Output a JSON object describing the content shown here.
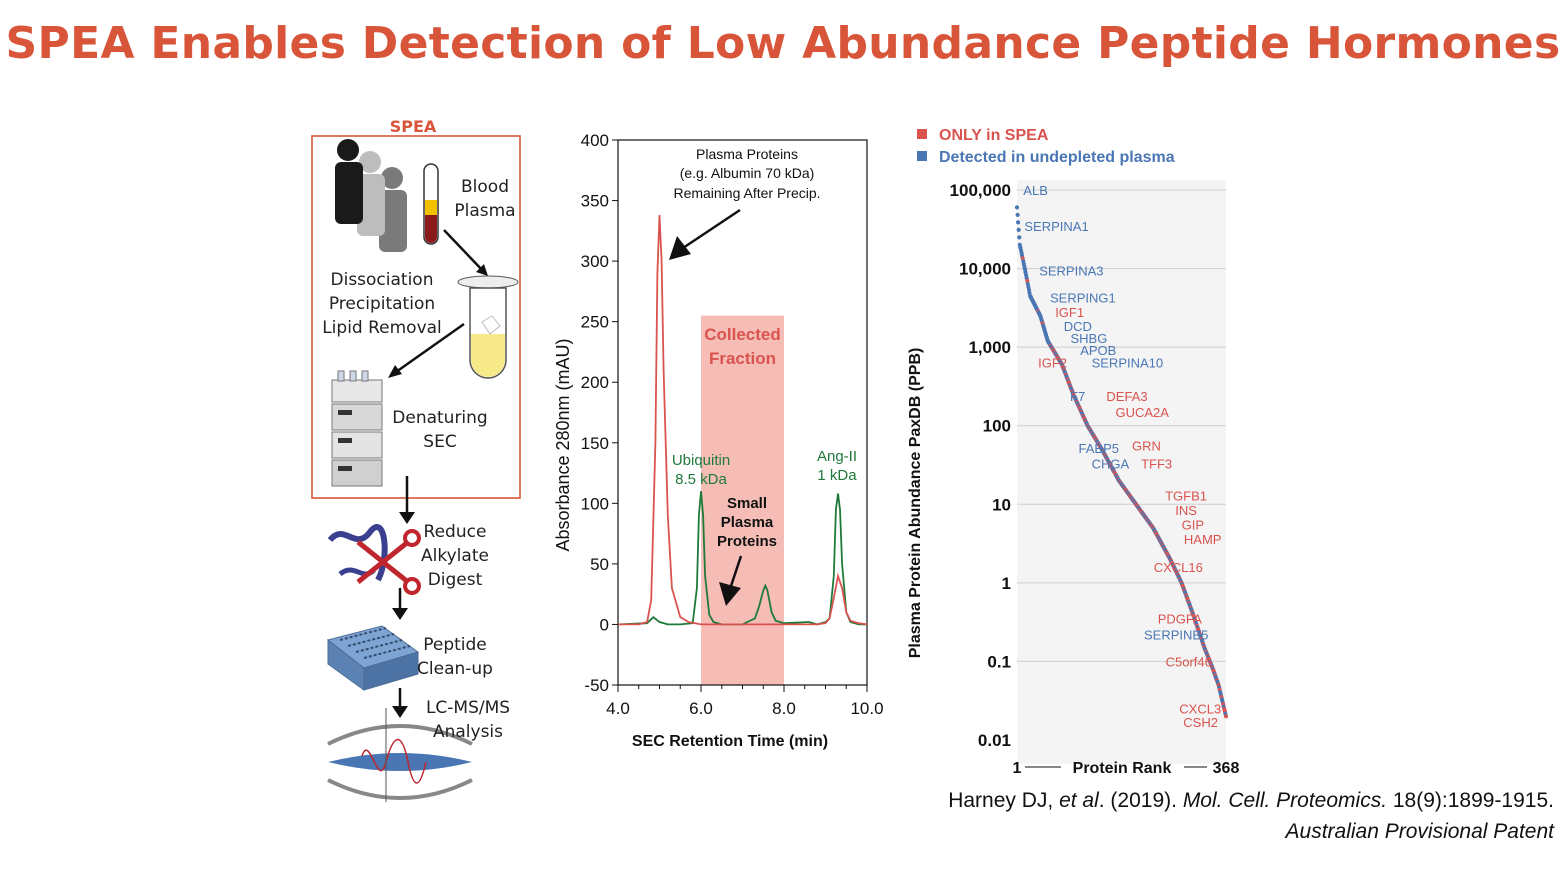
{
  "title": "SPEA Enables Detection of Low Abundance Peptide Hormones",
  "workflow": {
    "spea_label": "SPEA",
    "blood_label": [
      "Blood",
      "Plasma"
    ],
    "dissociation_label": [
      "Dissociation",
      "Precipitation",
      "Lipid Removal"
    ],
    "sec_label": [
      "Denaturing",
      "SEC"
    ],
    "reduce_label": [
      "Reduce",
      "Alkylate",
      "Digest"
    ],
    "cleanup_label": [
      "Peptide",
      "Clean-up"
    ],
    "lcms_label": [
      "LC-MS/MS",
      "Analysis"
    ]
  },
  "colors": {
    "accent": "#d9553a",
    "red_trace": "#d9534f",
    "green_trace": "#1f7a3a",
    "collected": "#f5bdb5",
    "only_spea": "#d9534f",
    "undepleted": "#4a77b4"
  },
  "chart_data": [
    {
      "type": "line",
      "title": "",
      "xlabel": "SEC Retention Time (min)",
      "ylabel": "Absorbance 280nm (mAU)",
      "xlim": [
        4.0,
        10.0
      ],
      "ylim": [
        -50,
        400
      ],
      "xticks": [
        "4.0",
        "6.0",
        "8.0",
        "10.0"
      ],
      "yticks": [
        "-50",
        "0",
        "50",
        "100",
        "150",
        "200",
        "250",
        "300",
        "350",
        "400"
      ],
      "collected_fraction": {
        "x_range": [
          6.0,
          8.0
        ],
        "label": [
          "Collected",
          "Fraction"
        ]
      },
      "series": [
        {
          "name": "red",
          "x": [
            4.0,
            4.5,
            4.7,
            4.8,
            4.9,
            4.95,
            5.0,
            5.05,
            5.1,
            5.2,
            5.3,
            5.5,
            5.7,
            6.0,
            7.0,
            8.0,
            8.8,
            9.0,
            9.1,
            9.2,
            9.3,
            9.4,
            9.5,
            9.6,
            9.8,
            10.0
          ],
          "y": [
            0,
            0,
            2,
            20,
            150,
            290,
            338,
            300,
            210,
            90,
            30,
            6,
            2,
            0,
            0,
            0,
            0,
            1,
            5,
            22,
            40,
            30,
            10,
            3,
            1,
            0
          ]
        },
        {
          "name": "green",
          "x": [
            4.0,
            4.7,
            4.85,
            5.0,
            5.2,
            5.5,
            5.8,
            5.9,
            5.95,
            6.0,
            6.05,
            6.1,
            6.2,
            6.3,
            6.5,
            7.0,
            7.3,
            7.4,
            7.5,
            7.55,
            7.6,
            7.7,
            7.8,
            8.0,
            8.6,
            8.8,
            9.0,
            9.1,
            9.2,
            9.25,
            9.3,
            9.35,
            9.4,
            9.5,
            9.6,
            9.8,
            10.0
          ],
          "y": [
            0,
            1,
            6,
            2,
            0,
            0,
            1,
            30,
            90,
            110,
            90,
            40,
            8,
            2,
            0,
            0,
            5,
            15,
            28,
            32,
            28,
            10,
            3,
            1,
            2,
            0,
            2,
            5,
            40,
            95,
            108,
            95,
            50,
            10,
            2,
            0,
            0
          ]
        }
      ],
      "annotations": {
        "plasma_proteins": [
          "Plasma Proteins",
          "(e.g. Albumin 70 kDa)",
          "Remaining After Precip."
        ],
        "ubiquitin": [
          "Ubiquitin",
          "8.5 kDa"
        ],
        "ang": [
          "Ang-II",
          "1 kDa"
        ],
        "small": [
          "Small",
          "Plasma",
          "Proteins"
        ]
      }
    },
    {
      "type": "scatter",
      "ylabel": "Plasma Protein Abundance PaxDB (PPB)",
      "xlabel": "Protein Rank",
      "x_start": "1",
      "x_end": "368",
      "yscale": "log",
      "ylim": [
        0.01,
        100000
      ],
      "yticks": [
        "100,000",
        "10,000",
        "1,000",
        "100",
        "10",
        "1",
        "0.1",
        "0.01"
      ],
      "legend": [
        {
          "label": "ONLY in SPEA",
          "color": "#d9534f"
        },
        {
          "label": "Detected in undepleted plasma",
          "color": "#4a77b4"
        }
      ],
      "curve": [
        {
          "rank": 1,
          "value": 60000
        },
        {
          "rank": 6,
          "value": 20000
        },
        {
          "rank": 16,
          "value": 9000
        },
        {
          "rank": 24,
          "value": 4500
        },
        {
          "rank": 42,
          "value": 2500
        },
        {
          "rank": 55,
          "value": 1200
        },
        {
          "rank": 80,
          "value": 600
        },
        {
          "rank": 100,
          "value": 250
        },
        {
          "rank": 125,
          "value": 100
        },
        {
          "rank": 150,
          "value": 50
        },
        {
          "rank": 180,
          "value": 20
        },
        {
          "rank": 210,
          "value": 10
        },
        {
          "rank": 240,
          "value": 5
        },
        {
          "rank": 270,
          "value": 2
        },
        {
          "rank": 290,
          "value": 1
        },
        {
          "rank": 310,
          "value": 0.4
        },
        {
          "rank": 330,
          "value": 0.15
        },
        {
          "rank": 345,
          "value": 0.08
        },
        {
          "rank": 355,
          "value": 0.05
        },
        {
          "rank": 368,
          "value": 0.02
        }
      ],
      "labels": [
        {
          "text": "ALB",
          "group": "undepleted",
          "rank": 12,
          "value": 100000
        },
        {
          "text": "SERPINA1",
          "group": "undepleted",
          "rank": 14,
          "value": 35000
        },
        {
          "text": "SERPINA3",
          "group": "undepleted",
          "rank": 40,
          "value": 9500
        },
        {
          "text": "SERPING1",
          "group": "undepleted",
          "rank": 59,
          "value": 4300
        },
        {
          "text": "IGF1",
          "group": "only",
          "rank": 68,
          "value": 2800
        },
        {
          "text": "DCD",
          "group": "undepleted",
          "rank": 83,
          "value": 1850
        },
        {
          "text": "SHBG",
          "group": "undepleted",
          "rank": 95,
          "value": 1300
        },
        {
          "text": "APOB",
          "group": "undepleted",
          "rank": 112,
          "value": 920
        },
        {
          "text": "IGF2",
          "group": "only",
          "rank": 38,
          "value": 640
        },
        {
          "text": "SERPINA10",
          "group": "undepleted",
          "rank": 132,
          "value": 640
        },
        {
          "text": "F7",
          "group": "undepleted",
          "rank": 94,
          "value": 240
        },
        {
          "text": "DEFA3",
          "group": "only",
          "rank": 158,
          "value": 240
        },
        {
          "text": "GUCA2A",
          "group": "only",
          "rank": 174,
          "value": 150
        },
        {
          "text": "FABP5",
          "group": "undepleted",
          "rank": 109,
          "value": 52
        },
        {
          "text": "GRN",
          "group": "only",
          "rank": 203,
          "value": 56
        },
        {
          "text": "CHGA",
          "group": "undepleted",
          "rank": 132,
          "value": 33
        },
        {
          "text": "TFF3",
          "group": "only",
          "rank": 219,
          "value": 33
        },
        {
          "text": "TGFB1",
          "group": "only",
          "rank": 261,
          "value": 13
        },
        {
          "text": "INS",
          "group": "only",
          "rank": 279,
          "value": 8.5
        },
        {
          "text": "GIP",
          "group": "only",
          "rank": 290,
          "value": 5.5
        },
        {
          "text": "HAMP",
          "group": "only",
          "rank": 294,
          "value": 3.6
        },
        {
          "text": "CXCL16",
          "group": "only",
          "rank": 241,
          "value": 1.6
        },
        {
          "text": "PDGFA",
          "group": "only",
          "rank": 248,
          "value": 0.35
        },
        {
          "text": "SERPINB5",
          "group": "undepleted",
          "rank": 224,
          "value": 0.22
        },
        {
          "text": "C5orf46",
          "group": "only",
          "rank": 262,
          "value": 0.1
        },
        {
          "text": "CXCL3",
          "group": "only",
          "rank": 286,
          "value": 0.025
        },
        {
          "text": "CSH2",
          "group": "only",
          "rank": 293,
          "value": 0.017
        }
      ]
    }
  ],
  "reference": {
    "line1_plain_a": "Harney DJ, ",
    "line1_italic_a": "et al",
    "line1_plain_b": ". (2019). ",
    "line1_italic_b": "Mol. Cell. Proteomics.",
    "line1_plain_c": " 18(9):1899-1915.",
    "line2": "Australian Provisional Patent"
  }
}
